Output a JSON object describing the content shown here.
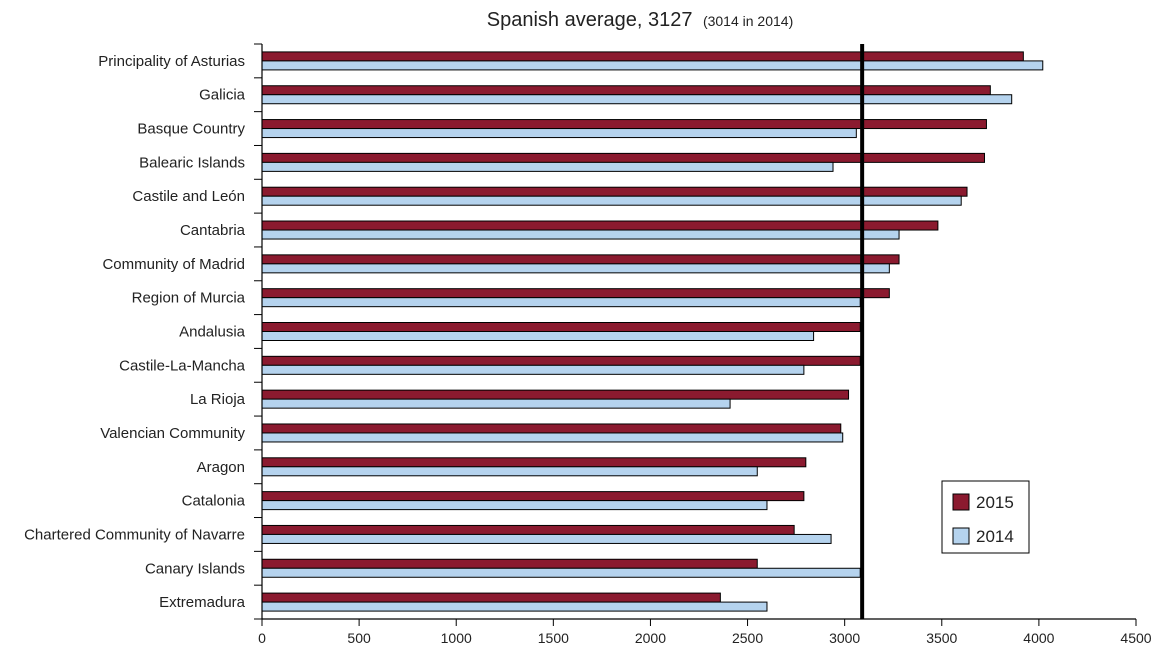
{
  "chart_data": {
    "type": "bar",
    "orientation": "horizontal",
    "title_main": "Spanish average, 3127",
    "title_sub": "(3014 in 2014)",
    "categories": [
      "Principality of Asturias",
      "Galicia",
      "Basque Country",
      "Balearic Islands",
      "Castile and León",
      "Cantabria",
      "Community of Madrid",
      "Region of Murcia",
      "Andalusia",
      "Castile-La-Mancha",
      "La Rioja",
      "Valencian Community",
      "Aragon",
      "Catalonia",
      "Chartered Community of Navarre",
      "Canary Islands",
      "Extremadura"
    ],
    "series": [
      {
        "name": "2015",
        "color": "#8B1A2F",
        "values": [
          3920,
          3750,
          3730,
          3720,
          3630,
          3480,
          3280,
          3230,
          3080,
          3080,
          3020,
          2980,
          2800,
          2790,
          2740,
          2550,
          2360
        ]
      },
      {
        "name": "2014",
        "color": "#B5D3EE",
        "values": [
          4020,
          3860,
          3060,
          2940,
          3600,
          3280,
          3230,
          3080,
          2840,
          2790,
          2410,
          2990,
          2550,
          2600,
          2930,
          3080,
          2600
        ]
      }
    ],
    "reference_line": {
      "value": 3090
    },
    "xlim": [
      0,
      4500
    ],
    "xticks": [
      0,
      500,
      1000,
      1500,
      2000,
      2500,
      3000,
      3500,
      4000,
      4500
    ],
    "legend_position": "bottom-right",
    "grid": false
  }
}
